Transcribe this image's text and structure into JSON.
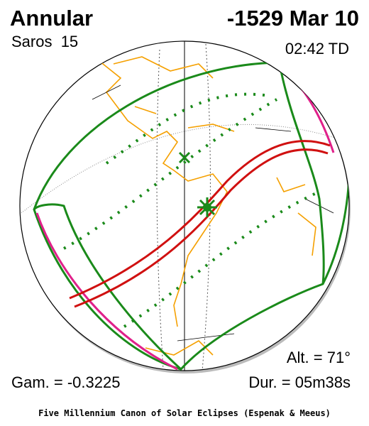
{
  "header": {
    "eclipse_type": "Annular",
    "date": "-1529 Mar 10",
    "saros": "Saros  15",
    "time": "02:42 TD"
  },
  "stats": {
    "altitude": "Alt. = 71°",
    "gamma": "Gam. = -0.3225",
    "duration": "Dur. = 05m38s"
  },
  "footer": "Five Millennium Canon of Solar Eclipses (Espenak & Meeus)"
}
